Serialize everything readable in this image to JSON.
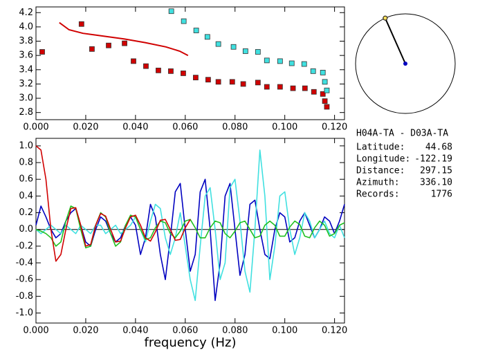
{
  "chart_data": [
    {
      "type": "scatter",
      "xlim": [
        0,
        0.124
      ],
      "ylim": [
        2.7,
        4.28
      ],
      "xticks": [
        {
          "value": 0,
          "label": "0.000"
        },
        {
          "value": 0.02,
          "label": "0.020"
        },
        {
          "value": 0.04,
          "label": "0.040"
        },
        {
          "value": 0.06,
          "label": "0.060"
        },
        {
          "value": 0.08,
          "label": "0.080"
        },
        {
          "value": 0.1,
          "label": "0.100"
        },
        {
          "value": 0.12,
          "label": "0.120"
        }
      ],
      "yticks": [
        2.8,
        {
          "value": 3,
          "label": "3.0"
        },
        3.2,
        3.4,
        3.6,
        3.8,
        {
          "value": 4,
          "label": "4.0"
        },
        4.2
      ],
      "series": [
        {
          "mode": "markers",
          "color": "#d00000",
          "x": [
            0.0025,
            0.0183,
            0.0225,
            0.0292,
            0.0356,
            0.0392,
            0.0442,
            0.0492,
            0.0542,
            0.0592,
            0.0642,
            0.0692,
            0.0733,
            0.0789,
            0.0833,
            0.0892,
            0.0928,
            0.0981,
            0.1033,
            0.1081,
            0.1117,
            0.1153,
            0.1161,
            0.1169
          ],
          "values": [
            3.65,
            4.04,
            3.69,
            3.74,
            3.77,
            3.52,
            3.45,
            3.39,
            3.38,
            3.35,
            3.29,
            3.26,
            3.23,
            3.23,
            3.2,
            3.22,
            3.16,
            3.16,
            3.14,
            3.14,
            3.09,
            3.06,
            2.96,
            2.88
          ]
        },
        {
          "mode": "markers",
          "color": "#40e0e0",
          "x": [
            0.0544,
            0.0594,
            0.0644,
            0.0689,
            0.0733,
            0.0794,
            0.0842,
            0.0892,
            0.0928,
            0.0981,
            0.1028,
            0.1078,
            0.1114,
            0.1153,
            0.1161,
            0.1169
          ],
          "values": [
            4.22,
            4.08,
            3.95,
            3.86,
            3.76,
            3.72,
            3.66,
            3.65,
            3.53,
            3.52,
            3.49,
            3.48,
            3.38,
            3.36,
            3.23,
            3.11
          ]
        },
        {
          "mode": "line",
          "color": "#d00000",
          "x": [
            0.0094,
            0.0133,
            0.0189,
            0.0272,
            0.0356,
            0.0439,
            0.0522,
            0.0578,
            0.0611
          ],
          "values": [
            4.06,
            3.96,
            3.91,
            3.87,
            3.83,
            3.78,
            3.72,
            3.66,
            3.6
          ]
        }
      ]
    },
    {
      "type": "line",
      "xlabel": "frequency (Hz)",
      "zero_line": true,
      "xlim": [
        0,
        0.124
      ],
      "ylim": [
        -1.12,
        1.09
      ],
      "xticks": [
        {
          "value": 0,
          "label": "0.000"
        },
        {
          "value": 0.02,
          "label": "0.020"
        },
        {
          "value": 0.04,
          "label": "0.040"
        },
        {
          "value": 0.06,
          "label": "0.060"
        },
        {
          "value": 0.08,
          "label": "0.080"
        },
        {
          "value": 0.1,
          "label": "0.100"
        },
        {
          "value": 0.12,
          "label": "0.120"
        }
      ],
      "yticks": [
        {
          "value": -1,
          "label": "-1.0"
        },
        -0.8,
        -0.6,
        -0.4,
        -0.2,
        {
          "value": 0,
          "label": "0.0"
        },
        0.2,
        0.4,
        0.6,
        0.8,
        {
          "value": 1,
          "label": "1.0"
        }
      ],
      "x": [
        0,
        0.002,
        0.004,
        0.006,
        0.008,
        0.01,
        0.012,
        0.014,
        0.016,
        0.018,
        0.02,
        0.022,
        0.024,
        0.026,
        0.028,
        0.03,
        0.032,
        0.034,
        0.036,
        0.038,
        0.04,
        0.042,
        0.044,
        0.046,
        0.048,
        0.05,
        0.052,
        0.054,
        0.056,
        0.058,
        0.06,
        0.062,
        0.064,
        0.066,
        0.068,
        0.07,
        0.072,
        0.074,
        0.076,
        0.078,
        0.08,
        0.082,
        0.084,
        0.086,
        0.088,
        0.09,
        0.092,
        0.094,
        0.096,
        0.098,
        0.1,
        0.102,
        0.104,
        0.106,
        0.108,
        0.11,
        0.112,
        0.114,
        0.116,
        0.118,
        0.12,
        0.122,
        0.124
      ],
      "series": [
        {
          "color": "#0000c0",
          "values": [
            0.05,
            0.28,
            0.15,
            0.0,
            -0.1,
            -0.05,
            0.1,
            0.2,
            0.25,
            0.05,
            -0.15,
            -0.2,
            0.0,
            0.15,
            0.1,
            -0.05,
            -0.15,
            -0.1,
            0.05,
            0.15,
            0.05,
            -0.3,
            -0.1,
            0.3,
            0.15,
            -0.3,
            -0.6,
            -0.1,
            0.45,
            0.55,
            0.0,
            -0.5,
            -0.3,
            0.45,
            0.6,
            0.0,
            -0.85,
            -0.4,
            0.4,
            0.55,
            0.0,
            -0.55,
            -0.3,
            0.3,
            0.35,
            0.0,
            -0.3,
            -0.35,
            0.0,
            0.2,
            0.15,
            -0.15,
            -0.1,
            0.1,
            0.2,
            0.05,
            -0.1,
            0.0,
            0.15,
            0.1,
            -0.05,
            0.1,
            0.3
          ]
        },
        {
          "color": "#40e0e0",
          "values": [
            0.0,
            -0.05,
            0.0,
            0.05,
            0.0,
            -0.05,
            0.05,
            0.0,
            -0.05,
            0.05,
            0.0,
            -0.05,
            0.05,
            0.05,
            -0.05,
            0.0,
            0.05,
            -0.05,
            0.0,
            0.05,
            0.15,
            0.0,
            -0.15,
            0.1,
            0.3,
            0.25,
            -0.1,
            -0.3,
            -0.1,
            0.2,
            -0.2,
            -0.6,
            -0.85,
            -0.2,
            0.4,
            0.5,
            0.0,
            -0.6,
            -0.4,
            0.5,
            0.6,
            0.1,
            -0.5,
            -0.75,
            0.0,
            0.95,
            0.4,
            -0.6,
            -0.2,
            0.4,
            0.45,
            0.0,
            -0.3,
            -0.1,
            0.2,
            0.1,
            -0.1,
            0.0,
            0.1,
            -0.05,
            -0.1,
            0.05,
            -0.1
          ]
        },
        {
          "color": "#20c020",
          "values": [
            0.0,
            -0.02,
            -0.05,
            -0.1,
            -0.2,
            -0.15,
            0.1,
            0.28,
            0.25,
            0.0,
            -0.22,
            -0.2,
            0.05,
            0.2,
            0.15,
            -0.05,
            -0.2,
            -0.15,
            0.05,
            0.17,
            0.15,
            0.0,
            -0.12,
            -0.1,
            0.02,
            0.1,
            0.08,
            -0.05,
            -0.1,
            -0.02,
            0.1,
            0.12,
            0.02,
            -0.1,
            -0.1,
            0.02,
            0.1,
            0.08,
            -0.05,
            -0.1,
            -0.02,
            0.08,
            0.1,
            0.0,
            -0.1,
            -0.08,
            0.05,
            0.1,
            0.05,
            -0.08,
            -0.08,
            0.03,
            0.1,
            0.06,
            -0.08,
            -0.1,
            0.02,
            0.1,
            0.05,
            -0.08,
            -0.05,
            0.05,
            0.08
          ]
        },
        {
          "color": "#d00000",
          "values": [
            1.0,
            0.95,
            0.6,
            0.0,
            -0.38,
            -0.3,
            0.0,
            0.25,
            0.26,
            0.05,
            -0.2,
            -0.18,
            0.05,
            0.19,
            0.16,
            0.0,
            -0.15,
            -0.14,
            0.02,
            0.15,
            0.17,
            0.05,
            -0.1,
            -0.14,
            -0.03,
            0.11,
            0.12,
            0.0,
            -0.13,
            -0.12,
            0.02,
            0.12,
            null,
            null,
            null,
            null,
            null,
            null,
            null,
            null,
            null,
            null,
            null,
            null,
            null,
            null,
            null,
            null,
            null,
            null,
            null,
            null,
            null,
            null,
            null,
            null,
            null,
            null,
            null,
            null,
            null,
            null,
            null
          ]
        }
      ]
    }
  ],
  "info": {
    "title": "H04A-TA  -  D03A-TA",
    "rows": [
      {
        "label": "Latitude:",
        "value": 44.68
      },
      {
        "label": "Longitude:",
        "value": -122.19
      },
      {
        "label": "Distance:",
        "value": 297.15
      },
      {
        "label": "Azimuth:",
        "value": {
          "value": 336.1,
          "label": "336.10"
        }
      },
      {
        "label": "Records:",
        "value": 1776
      }
    ]
  }
}
